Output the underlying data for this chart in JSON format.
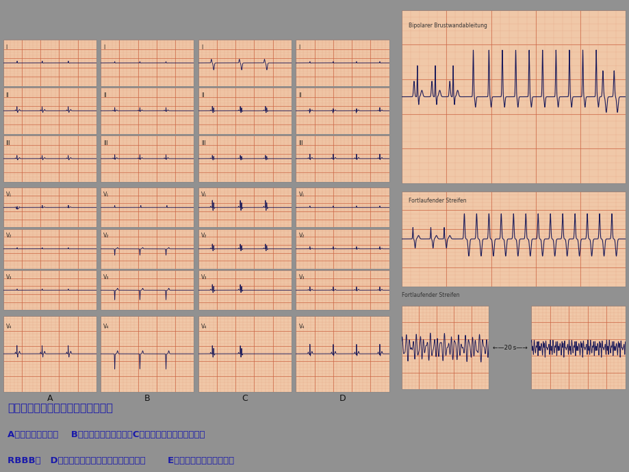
{
  "title_line1": "前壁心梗后室性心动过速和心室颤动",
  "title_line2": "A：心梗前心电图；    B：心梗后两天心电图；C：心梗后第二天心电图显示",
  "title_line3": "RBBB；   D：心梗后十天心电图出现电轴左偏；       E：继后出现室性心律失常",
  "bg_color": "#919191",
  "text_color": "#1a1aaa",
  "ecg_bg_warm": "#f0c8a8",
  "ecg_bg_light": "#f8e8d8",
  "grid_major": "#cc6644",
  "grid_minor": "#e8a888",
  "ecg_line": "#1a1a5a",
  "panel_labels": [
    "A",
    "B",
    "C",
    "D"
  ],
  "right_label1": "Bipolarer Brustwandableitung",
  "right_label2": "Fortlaufender Streifen",
  "right_label3": "Fortlaufender Streifen",
  "arrow_text": "←—20 s—→",
  "figsize": [
    9.2,
    6.9
  ],
  "dpi": 100
}
